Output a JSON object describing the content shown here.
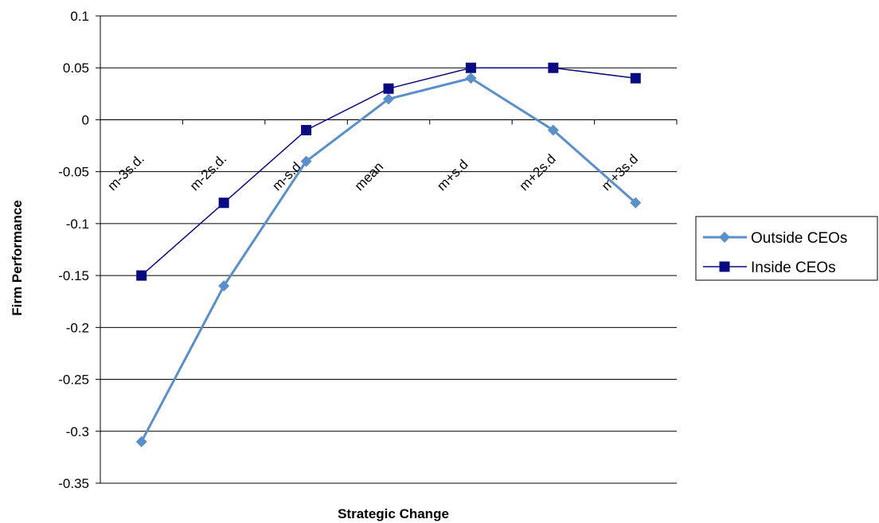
{
  "chart_data": {
    "type": "line",
    "categories": [
      "m-3s.d.",
      "m-2s.d.",
      "m-s.d.",
      "mean",
      "m+s.d",
      "m+2s.d",
      "m+3s.d"
    ],
    "series": [
      {
        "name": "Outside CEOs",
        "values": [
          -0.31,
          -0.16,
          -0.04,
          0.02,
          0.04,
          -0.01,
          -0.08
        ],
        "color": "#5b8fc9",
        "marker": "diamond"
      },
      {
        "name": "Inside CEOs",
        "values": [
          -0.15,
          -0.08,
          -0.01,
          0.03,
          0.05,
          0.05,
          0.04
        ],
        "color": "#0a0a80",
        "marker": "square"
      }
    ],
    "xlabel": "Strategic Change",
    "ylabel": "Firm Performance",
    "ylim": [
      -0.35,
      0.1
    ],
    "yticks": [
      0.1,
      0.05,
      0,
      -0.05,
      -0.1,
      -0.15,
      -0.2,
      -0.25,
      -0.3,
      -0.35
    ],
    "ytick_labels": [
      "0.1",
      "0.05",
      "0",
      "-0.05",
      "-0.1",
      "-0.15",
      "-0.2",
      "-0.25",
      "-0.3",
      "-0.35"
    ],
    "grid": true,
    "legend": "right"
  }
}
